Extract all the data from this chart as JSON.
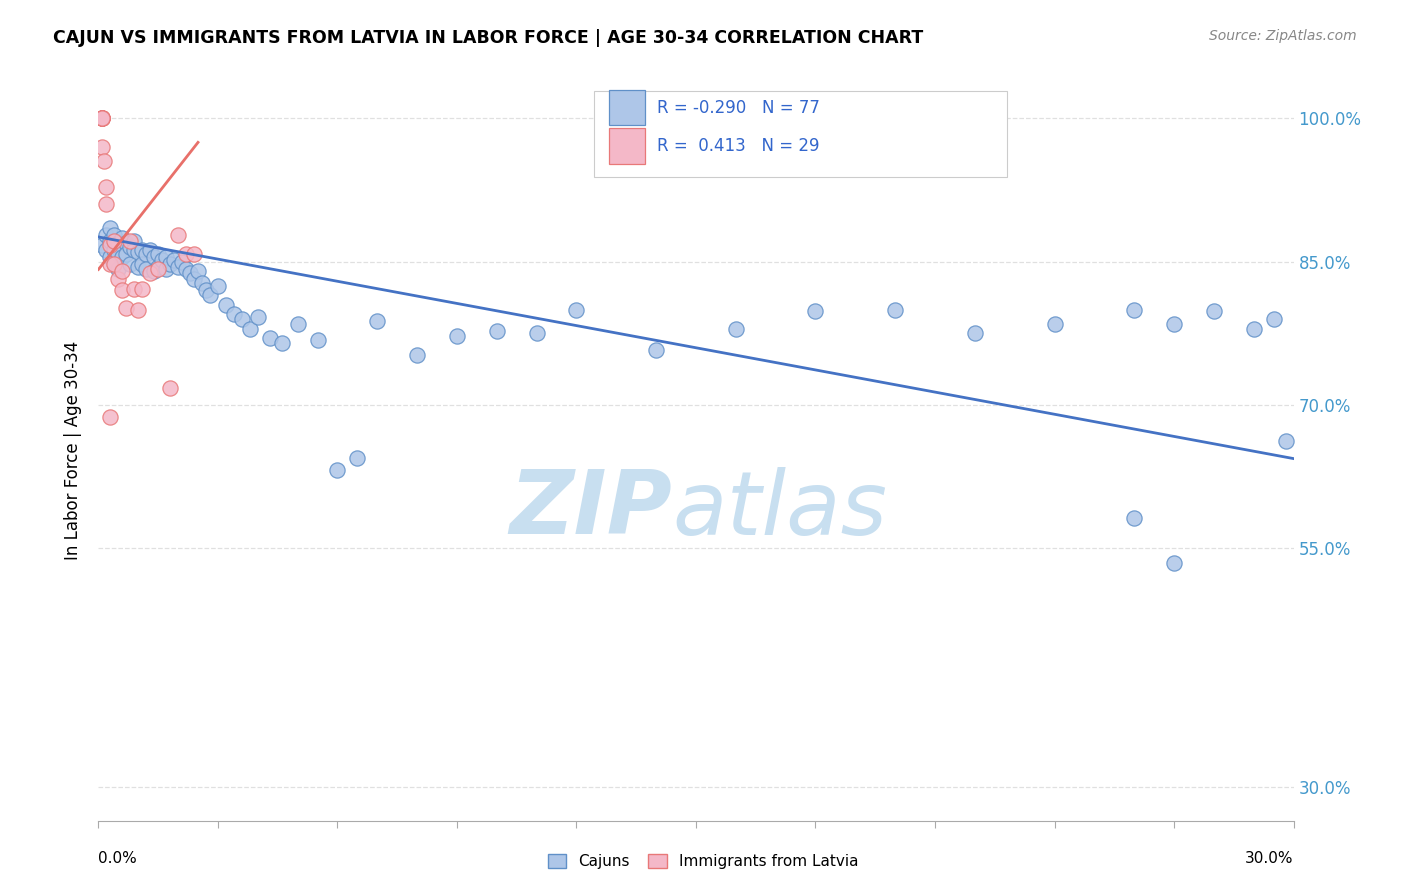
{
  "title": "CAJUN VS IMMIGRANTS FROM LATVIA IN LABOR FORCE | AGE 30-34 CORRELATION CHART",
  "source": "Source: ZipAtlas.com",
  "ylabel": "In Labor Force | Age 30-34",
  "right_yticks": [
    1.0,
    0.85,
    0.7,
    0.55,
    0.3
  ],
  "right_yticklabels": [
    "100.0%",
    "85.0%",
    "70.0%",
    "55.0%",
    "30.0%"
  ],
  "xmin": 0.0,
  "xmax": 0.3,
  "ymin": 0.265,
  "ymax": 1.04,
  "cajun_R": -0.29,
  "cajun_N": 77,
  "latvia_R": 0.413,
  "latvia_N": 29,
  "cajun_color": "#aec6e8",
  "latvia_color": "#f4b8c8",
  "cajun_edge_color": "#6090c8",
  "latvia_edge_color": "#e87878",
  "cajun_line_color": "#4472c4",
  "latvia_line_color": "#e8706a",
  "grid_color": "#e0e0e0",
  "watermark_zip_color": "#c8dff0",
  "watermark_atlas_color": "#c8dff0",
  "cajun_x": [
    0.001,
    0.002,
    0.002,
    0.003,
    0.003,
    0.003,
    0.004,
    0.004,
    0.004,
    0.005,
    0.005,
    0.005,
    0.006,
    0.006,
    0.007,
    0.007,
    0.008,
    0.008,
    0.009,
    0.009,
    0.01,
    0.01,
    0.011,
    0.011,
    0.012,
    0.012,
    0.013,
    0.014,
    0.014,
    0.015,
    0.015,
    0.016,
    0.017,
    0.017,
    0.018,
    0.019,
    0.02,
    0.021,
    0.022,
    0.023,
    0.024,
    0.025,
    0.026,
    0.027,
    0.028,
    0.03,
    0.032,
    0.034,
    0.036,
    0.038,
    0.04,
    0.043,
    0.046,
    0.05,
    0.055,
    0.06,
    0.065,
    0.07,
    0.08,
    0.09,
    0.1,
    0.11,
    0.12,
    0.14,
    0.16,
    0.18,
    0.2,
    0.22,
    0.24,
    0.26,
    0.27,
    0.28,
    0.29,
    0.295,
    0.298,
    0.27,
    0.26
  ],
  "cajun_y": [
    0.868,
    0.862,
    0.878,
    0.855,
    0.872,
    0.885,
    0.862,
    0.878,
    0.848,
    0.87,
    0.858,
    0.842,
    0.875,
    0.855,
    0.87,
    0.858,
    0.865,
    0.848,
    0.872,
    0.862,
    0.86,
    0.845,
    0.862,
    0.848,
    0.858,
    0.842,
    0.862,
    0.855,
    0.84,
    0.858,
    0.845,
    0.852,
    0.855,
    0.842,
    0.848,
    0.852,
    0.845,
    0.85,
    0.842,
    0.838,
    0.832,
    0.84,
    0.828,
    0.82,
    0.815,
    0.825,
    0.805,
    0.795,
    0.79,
    0.78,
    0.792,
    0.77,
    0.765,
    0.785,
    0.768,
    0.632,
    0.645,
    0.788,
    0.752,
    0.772,
    0.778,
    0.775,
    0.8,
    0.758,
    0.78,
    0.798,
    0.8,
    0.775,
    0.785,
    0.8,
    0.785,
    0.798,
    0.78,
    0.79,
    0.662,
    0.535,
    0.582
  ],
  "latvia_x": [
    0.001,
    0.001,
    0.001,
    0.001,
    0.001,
    0.001,
    0.001,
    0.0015,
    0.002,
    0.002,
    0.003,
    0.003,
    0.004,
    0.004,
    0.005,
    0.006,
    0.007,
    0.008,
    0.009,
    0.01,
    0.011,
    0.013,
    0.015,
    0.018,
    0.02,
    0.022,
    0.024,
    0.006,
    0.003
  ],
  "latvia_y": [
    1.0,
    1.0,
    1.0,
    1.0,
    1.0,
    1.0,
    0.97,
    0.955,
    0.928,
    0.91,
    0.868,
    0.848,
    0.872,
    0.848,
    0.832,
    0.82,
    0.802,
    0.872,
    0.822,
    0.8,
    0.822,
    0.838,
    0.842,
    0.718,
    0.878,
    0.858,
    0.858,
    0.84,
    0.688
  ],
  "cajun_trend_x": [
    0.0,
    0.3
  ],
  "cajun_trend_y": [
    0.876,
    0.644
  ],
  "latvia_trend_x": [
    0.0,
    0.025
  ],
  "latvia_trend_y": [
    0.842,
    0.975
  ]
}
